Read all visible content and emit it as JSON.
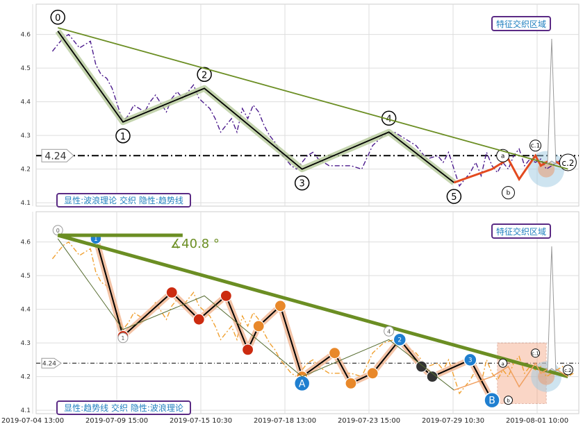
{
  "chart_data": [
    {
      "type": "line",
      "panel": "top",
      "title": "",
      "legend_label": "显性:波浪理论 交织 隐性:趋势线",
      "zone_label": "特征交织区域",
      "level_label": "4.24",
      "level": 4.24,
      "ylim": [
        4.09,
        4.69
      ],
      "y_ticks": [
        4.1,
        4.2,
        4.3,
        4.4,
        4.5,
        4.6
      ],
      "x_ticks": [
        "2019-07-04 13:00",
        "2019-07-09 15:00",
        "2019-07-15 10:30",
        "2019-07-18 13:00",
        "2019-07-23 15:00",
        "2019-07-29 10:30",
        "2019-08-01 10:00"
      ],
      "xlim": [
        0,
        100
      ],
      "series": [
        {
          "role": "price",
          "color": "#4b1a8c",
          "x": [
            3,
            4,
            5,
            6,
            8,
            10,
            11,
            12,
            13,
            14,
            15,
            16,
            17,
            18,
            19,
            20,
            21,
            22,
            24,
            25,
            26,
            27,
            28,
            29,
            30,
            32,
            33,
            34,
            35,
            36,
            37,
            38,
            39,
            40,
            41,
            42,
            43,
            44,
            45,
            46,
            47,
            48,
            49,
            50,
            51,
            52,
            54,
            56,
            58,
            60,
            62,
            64,
            66,
            68,
            70,
            72,
            74,
            75,
            76,
            77,
            78,
            79,
            80,
            81,
            82,
            83,
            84,
            85,
            86,
            87,
            88,
            89,
            90,
            91,
            92,
            93,
            94,
            95,
            96,
            97,
            98,
            99
          ],
          "y": [
            4.55,
            4.57,
            4.59,
            4.6,
            4.56,
            4.58,
            4.51,
            4.48,
            4.47,
            4.44,
            4.39,
            4.34,
            4.36,
            4.39,
            4.38,
            4.37,
            4.4,
            4.42,
            4.37,
            4.41,
            4.43,
            4.41,
            4.43,
            4.45,
            4.41,
            4.38,
            4.35,
            4.31,
            4.33,
            4.35,
            4.31,
            4.38,
            4.35,
            4.39,
            4.37,
            4.33,
            4.3,
            4.28,
            4.25,
            4.23,
            4.21,
            4.2,
            4.22,
            4.24,
            4.25,
            4.23,
            4.21,
            4.21,
            4.21,
            4.2,
            4.27,
            4.3,
            4.31,
            4.29,
            4.27,
            4.23,
            4.24,
            4.22,
            4.25,
            4.2,
            4.15,
            4.17,
            4.19,
            4.22,
            4.18,
            4.25,
            4.21,
            4.19,
            4.22,
            4.2,
            4.24,
            4.26,
            4.21,
            4.23,
            4.22,
            4.23,
            4.2,
            4.21,
            4.22,
            4.23,
            4.2,
            4.21
          ]
        },
        {
          "role": "waves",
          "color": "#000000",
          "x": [
            4,
            16,
            31,
            49,
            65,
            77
          ],
          "y": [
            4.61,
            4.34,
            4.44,
            4.2,
            4.31,
            4.16
          ],
          "labels": [
            "0",
            "1",
            "2",
            "3",
            "4",
            "5"
          ]
        },
        {
          "role": "corrective",
          "color": "#e34a1f",
          "x": [
            77,
            84,
            87,
            89,
            92,
            93,
            95,
            98
          ],
          "y": [
            4.16,
            4.2,
            4.23,
            4.17,
            4.24,
            4.21,
            4.23,
            4.2
          ],
          "labels": [
            "a",
            "b",
            "c.1",
            "c.2"
          ]
        },
        {
          "role": "trendline",
          "color": "#6b8e23",
          "x": [
            4,
            98
          ],
          "y": [
            4.62,
            4.2
          ]
        }
      ]
    },
    {
      "type": "line",
      "panel": "bottom",
      "title": "",
      "legend_label": "显性:趋势线 交织 隐性:波浪理论",
      "zone_label": "特征交织区域",
      "level_label": "4.24",
      "level": 4.24,
      "angle_label": "∡40.8 °",
      "ylim": [
        4.09,
        4.69
      ],
      "y_ticks": [
        4.1,
        4.2,
        4.3,
        4.4,
        4.5,
        4.6
      ],
      "x_ticks": [
        "2019-07-04 13:00",
        "2019-07-09 15:00",
        "2019-07-15 10:30",
        "2019-07-18 13:00",
        "2019-07-23 15:00",
        "2019-07-29 10:30",
        "2019-08-01 10:00"
      ],
      "xlim": [
        0,
        100
      ],
      "series": [
        {
          "role": "price",
          "color": "#f0a030",
          "x": [
            3,
            4,
            5,
            6,
            8,
            10,
            11,
            12,
            13,
            14,
            15,
            16,
            17,
            18,
            19,
            20,
            21,
            22,
            24,
            25,
            26,
            27,
            28,
            29,
            30,
            32,
            33,
            34,
            35,
            36,
            37,
            38,
            39,
            40,
            41,
            42,
            43,
            44,
            45,
            46,
            47,
            48,
            49,
            50,
            51,
            52,
            54,
            56,
            58,
            60,
            62,
            64,
            66,
            68,
            70,
            72,
            74,
            75,
            76,
            77,
            78,
            79,
            80,
            81,
            82,
            83,
            84,
            85,
            86,
            87,
            88,
            89,
            90,
            91,
            92,
            93,
            94,
            95,
            96,
            97,
            98,
            99
          ],
          "y": [
            4.55,
            4.57,
            4.59,
            4.6,
            4.56,
            4.58,
            4.51,
            4.48,
            4.47,
            4.44,
            4.39,
            4.34,
            4.36,
            4.39,
            4.38,
            4.37,
            4.4,
            4.42,
            4.37,
            4.41,
            4.43,
            4.41,
            4.43,
            4.45,
            4.41,
            4.38,
            4.35,
            4.31,
            4.33,
            4.35,
            4.31,
            4.38,
            4.35,
            4.39,
            4.37,
            4.33,
            4.3,
            4.28,
            4.25,
            4.23,
            4.21,
            4.2,
            4.22,
            4.24,
            4.25,
            4.23,
            4.21,
            4.21,
            4.21,
            4.2,
            4.27,
            4.3,
            4.31,
            4.29,
            4.27,
            4.23,
            4.24,
            4.22,
            4.25,
            4.2,
            4.15,
            4.17,
            4.19,
            4.22,
            4.18,
            4.25,
            4.21,
            4.19,
            4.22,
            4.2,
            4.24,
            4.26,
            4.21,
            4.23,
            4.22,
            4.23,
            4.2,
            4.21,
            4.22,
            4.23,
            4.2,
            4.21
          ]
        },
        {
          "role": "trend-path",
          "color": "#000000",
          "x": [
            11,
            16,
            25,
            30,
            35,
            39,
            41,
            45,
            49,
            55,
            58,
            62,
            67,
            71,
            73,
            80,
            84
          ],
          "y": [
            4.61,
            4.32,
            4.45,
            4.37,
            4.44,
            4.28,
            4.35,
            4.41,
            4.2,
            4.27,
            4.18,
            4.21,
            4.31,
            4.23,
            4.2,
            4.25,
            4.13
          ],
          "labels": [
            "1",
            "A",
            "B",
            "2",
            "3"
          ]
        },
        {
          "role": "trendline",
          "color": "#6b8e23",
          "x": [
            4,
            98
          ],
          "y": [
            4.62,
            4.2
          ]
        },
        {
          "role": "waves",
          "color": "#556b2f",
          "x": [
            4,
            16,
            31,
            49,
            65,
            77
          ],
          "y": [
            4.61,
            4.34,
            4.44,
            4.2,
            4.31,
            4.16
          ],
          "labels": [
            "0",
            "1",
            "4"
          ]
        },
        {
          "role": "corrective",
          "color": "#f0a060",
          "x": [
            77,
            84,
            87,
            89,
            92,
            93,
            95,
            98
          ],
          "y": [
            4.16,
            4.2,
            4.23,
            4.17,
            4.24,
            4.21,
            4.23,
            4.2
          ],
          "labels": [
            "a",
            "b",
            "c.1",
            "c.2"
          ]
        }
      ]
    }
  ]
}
